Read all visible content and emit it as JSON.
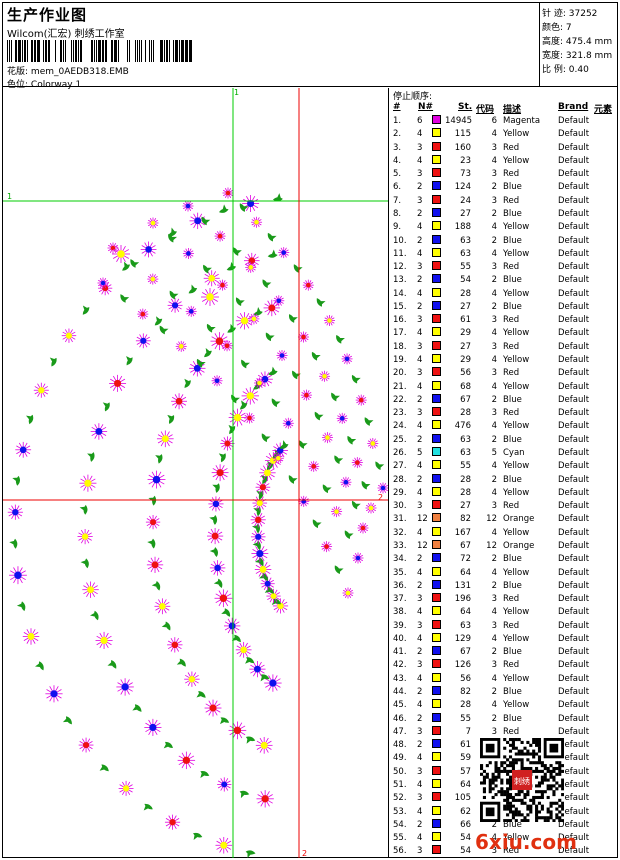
{
  "header": {
    "title": "生产作业图",
    "company": "Wilcom(汇宏) 刺绣工作室",
    "design_label": "花版:",
    "design_file": "mem_0AEDB318.EMB",
    "colorway_label": "色位:",
    "colorway": "Colorway 1"
  },
  "stats": {
    "stitches_label": "针 迹:",
    "stitches": "37252",
    "colors_label": "颜色:",
    "colors": "7",
    "height_label": "高度:",
    "height": "475.4 mm",
    "width_label": "宽度:",
    "width": "321.8 mm",
    "scale_label": "比 例:",
    "scale": "0.40"
  },
  "guides": {
    "label_1": "1",
    "label_2": "2"
  },
  "table": {
    "title": "停止顺序:",
    "headers": {
      "num": "#",
      "n": "N#",
      "st": "St.",
      "code": "代码",
      "desc": "描述",
      "brand": "Brand",
      "element": "元素"
    },
    "rows": [
      {
        "n": "1.",
        "c": "6",
        "st": "14945",
        "code": "6",
        "desc": "Magenta",
        "brand": "Default"
      },
      {
        "n": "2.",
        "c": "4",
        "st": "115",
        "code": "4",
        "desc": "Yellow",
        "brand": "Default"
      },
      {
        "n": "3.",
        "c": "3",
        "st": "160",
        "code": "3",
        "desc": "Red",
        "brand": "Default"
      },
      {
        "n": "4.",
        "c": "4",
        "st": "23",
        "code": "4",
        "desc": "Yellow",
        "brand": "Default"
      },
      {
        "n": "5.",
        "c": "3",
        "st": "73",
        "code": "3",
        "desc": "Red",
        "brand": "Default"
      },
      {
        "n": "6.",
        "c": "2",
        "st": "124",
        "code": "2",
        "desc": "Blue",
        "brand": "Default"
      },
      {
        "n": "7.",
        "c": "3",
        "st": "24",
        "code": "3",
        "desc": "Red",
        "brand": "Default"
      },
      {
        "n": "8.",
        "c": "2",
        "st": "27",
        "code": "2",
        "desc": "Blue",
        "brand": "Default"
      },
      {
        "n": "9.",
        "c": "4",
        "st": "188",
        "code": "4",
        "desc": "Yellow",
        "brand": "Default"
      },
      {
        "n": "10.",
        "c": "2",
        "st": "63",
        "code": "2",
        "desc": "Blue",
        "brand": "Default"
      },
      {
        "n": "11.",
        "c": "4",
        "st": "63",
        "code": "4",
        "desc": "Yellow",
        "brand": "Default"
      },
      {
        "n": "12.",
        "c": "3",
        "st": "55",
        "code": "3",
        "desc": "Red",
        "brand": "Default"
      },
      {
        "n": "13.",
        "c": "2",
        "st": "54",
        "code": "2",
        "desc": "Blue",
        "brand": "Default"
      },
      {
        "n": "14.",
        "c": "4",
        "st": "28",
        "code": "4",
        "desc": "Yellow",
        "brand": "Default"
      },
      {
        "n": "15.",
        "c": "2",
        "st": "27",
        "code": "2",
        "desc": "Blue",
        "brand": "Default"
      },
      {
        "n": "16.",
        "c": "3",
        "st": "61",
        "code": "3",
        "desc": "Red",
        "brand": "Default"
      },
      {
        "n": "17.",
        "c": "4",
        "st": "29",
        "code": "4",
        "desc": "Yellow",
        "brand": "Default"
      },
      {
        "n": "18.",
        "c": "3",
        "st": "27",
        "code": "3",
        "desc": "Red",
        "brand": "Default"
      },
      {
        "n": "19.",
        "c": "4",
        "st": "29",
        "code": "4",
        "desc": "Yellow",
        "brand": "Default"
      },
      {
        "n": "20.",
        "c": "3",
        "st": "56",
        "code": "3",
        "desc": "Red",
        "brand": "Default"
      },
      {
        "n": "21.",
        "c": "4",
        "st": "68",
        "code": "4",
        "desc": "Yellow",
        "brand": "Default"
      },
      {
        "n": "22.",
        "c": "2",
        "st": "67",
        "code": "2",
        "desc": "Blue",
        "brand": "Default"
      },
      {
        "n": "23.",
        "c": "3",
        "st": "28",
        "code": "3",
        "desc": "Red",
        "brand": "Default"
      },
      {
        "n": "24.",
        "c": "4",
        "st": "476",
        "code": "4",
        "desc": "Yellow",
        "brand": "Default"
      },
      {
        "n": "25.",
        "c": "2",
        "st": "63",
        "code": "2",
        "desc": "Blue",
        "brand": "Default"
      },
      {
        "n": "26.",
        "c": "5",
        "st": "63",
        "code": "5",
        "desc": "Cyan",
        "brand": "Default"
      },
      {
        "n": "27.",
        "c": "4",
        "st": "55",
        "code": "4",
        "desc": "Yellow",
        "brand": "Default"
      },
      {
        "n": "28.",
        "c": "2",
        "st": "28",
        "code": "2",
        "desc": "Blue",
        "brand": "Default"
      },
      {
        "n": "29.",
        "c": "4",
        "st": "28",
        "code": "4",
        "desc": "Yellow",
        "brand": "Default"
      },
      {
        "n": "30.",
        "c": "3",
        "st": "27",
        "code": "3",
        "desc": "Red",
        "brand": "Default"
      },
      {
        "n": "31.",
        "c": "12",
        "st": "82",
        "code": "12",
        "desc": "Orange",
        "brand": "Default"
      },
      {
        "n": "32.",
        "c": "4",
        "st": "167",
        "code": "4",
        "desc": "Yellow",
        "brand": "Default"
      },
      {
        "n": "33.",
        "c": "12",
        "st": "67",
        "code": "12",
        "desc": "Orange",
        "brand": "Default"
      },
      {
        "n": "34.",
        "c": "2",
        "st": "72",
        "code": "2",
        "desc": "Blue",
        "brand": "Default"
      },
      {
        "n": "35.",
        "c": "4",
        "st": "64",
        "code": "4",
        "desc": "Yellow",
        "brand": "Default"
      },
      {
        "n": "36.",
        "c": "2",
        "st": "131",
        "code": "2",
        "desc": "Blue",
        "brand": "Default"
      },
      {
        "n": "37.",
        "c": "3",
        "st": "196",
        "code": "3",
        "desc": "Red",
        "brand": "Default"
      },
      {
        "n": "38.",
        "c": "4",
        "st": "64",
        "code": "4",
        "desc": "Yellow",
        "brand": "Default"
      },
      {
        "n": "39.",
        "c": "3",
        "st": "63",
        "code": "3",
        "desc": "Red",
        "brand": "Default"
      },
      {
        "n": "40.",
        "c": "4",
        "st": "129",
        "code": "4",
        "desc": "Yellow",
        "brand": "Default"
      },
      {
        "n": "41.",
        "c": "2",
        "st": "67",
        "code": "2",
        "desc": "Blue",
        "brand": "Default"
      },
      {
        "n": "42.",
        "c": "3",
        "st": "126",
        "code": "3",
        "desc": "Red",
        "brand": "Default"
      },
      {
        "n": "43.",
        "c": "4",
        "st": "56",
        "code": "4",
        "desc": "Yellow",
        "brand": "Default"
      },
      {
        "n": "44.",
        "c": "2",
        "st": "82",
        "code": "2",
        "desc": "Blue",
        "brand": "Default"
      },
      {
        "n": "45.",
        "c": "4",
        "st": "28",
        "code": "4",
        "desc": "Yellow",
        "brand": "Default"
      },
      {
        "n": "46.",
        "c": "2",
        "st": "55",
        "code": "2",
        "desc": "Blue",
        "brand": "Default"
      },
      {
        "n": "47.",
        "c": "3",
        "st": "7",
        "code": "3",
        "desc": "Red",
        "brand": "Default"
      },
      {
        "n": "48.",
        "c": "2",
        "st": "61",
        "code": "2",
        "desc": "Blue",
        "brand": "Default"
      },
      {
        "n": "49.",
        "c": "4",
        "st": "59",
        "code": "4",
        "desc": "Yellow",
        "brand": "Default"
      },
      {
        "n": "50.",
        "c": "3",
        "st": "57",
        "code": "3",
        "desc": "Red",
        "brand": "Default"
      },
      {
        "n": "51.",
        "c": "4",
        "st": "64",
        "code": "4",
        "desc": "Yellow",
        "brand": "Default"
      },
      {
        "n": "52.",
        "c": "3",
        "st": "105",
        "code": "3",
        "desc": "Red",
        "brand": "Default"
      },
      {
        "n": "53.",
        "c": "4",
        "st": "62",
        "code": "4",
        "desc": "Yellow",
        "brand": "Default"
      },
      {
        "n": "54.",
        "c": "2",
        "st": "66",
        "code": "2",
        "desc": "Blue",
        "brand": "Default"
      },
      {
        "n": "55.",
        "c": "4",
        "st": "54",
        "code": "4",
        "desc": "Yellow",
        "brand": "Default"
      },
      {
        "n": "56.",
        "c": "3",
        "st": "54",
        "code": "3",
        "desc": "Red",
        "brand": "Default"
      }
    ]
  },
  "swatch_colors": {
    "Magenta": "#e000e0",
    "Yellow": "#ffff00",
    "Red": "#ee1111",
    "Blue": "#1010ee",
    "Cyan": "#20e0e0",
    "Orange": "#f08040"
  },
  "design_colors": {
    "leaf": "#1a9a1a",
    "guide_green": "#00cc00",
    "guide_red": "#ee0000"
  },
  "watermark": "6xiu.com",
  "qr_seal": "刺绣"
}
